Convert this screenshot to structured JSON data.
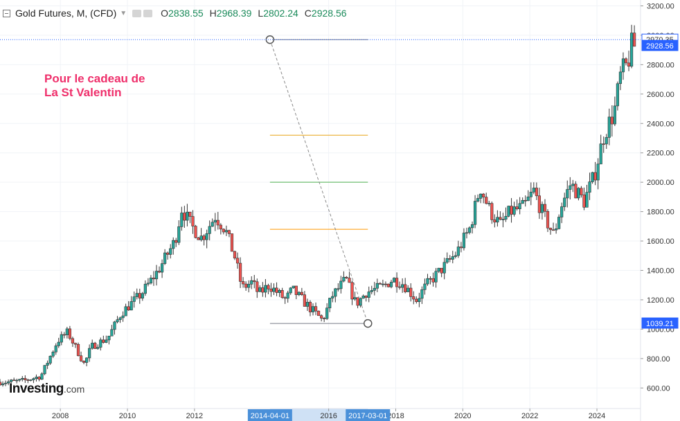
{
  "header": {
    "title": "Gold Futures, M, (CFD)",
    "open_label": "O",
    "open": "2838.55",
    "high_label": "H",
    "high": "2968.39",
    "low_label": "L",
    "low": "2802.24",
    "close_label": "C",
    "close": "2928.56"
  },
  "annotation": {
    "line1": "Pour le cadeau de",
    "line2": "La St Valentin"
  },
  "logo": {
    "main": "Investing",
    "suffix": ".com"
  },
  "colors": {
    "up": "#26a69a",
    "down": "#ef5350",
    "grid_line": "#f0f3f7",
    "price_tag": "#2962ff",
    "date_tag": "#4a90d9"
  },
  "chart_data": {
    "type": "candlestick",
    "y_axis": {
      "ticks": [
        "600.00",
        "800.00",
        "1000.00",
        "1200.00",
        "1400.00",
        "1600.00",
        "1800.00",
        "2000.00",
        "2200.00",
        "2400.00",
        "2600.00",
        "2800.00",
        "3000.00",
        "3200.00"
      ],
      "tick_values": [
        600,
        800,
        1000,
        1200,
        1400,
        1600,
        1800,
        2000,
        2200,
        2400,
        2600,
        2800,
        3000,
        3200
      ],
      "range": [
        460,
        3240
      ]
    },
    "x_axis": {
      "ticks": [
        "2008",
        "2010",
        "2012",
        "2016",
        "2018",
        "2020",
        "2022",
        "2024"
      ],
      "tick_years": [
        2008,
        2010,
        2012,
        2016,
        2018,
        2020,
        2022,
        2024
      ],
      "range": [
        2006.2,
        2025.3
      ]
    },
    "price_labels": [
      {
        "text": "2970.35",
        "value": 2970.35,
        "style": "outline"
      },
      {
        "text": "2928.56",
        "value": 2928.56,
        "style": "filled"
      },
      {
        "text": "1039.21",
        "value": 1039.21,
        "style": "filled"
      }
    ],
    "date_labels": [
      {
        "text": "2014-04-01",
        "year": 2014.25
      },
      {
        "text": "2017-03-01",
        "year": 2017.17
      }
    ],
    "date_range_highlight": [
      2014.25,
      2017.17
    ],
    "current_price_line": 2970.35,
    "fib_retracement": {
      "start": {
        "year": 2014.25,
        "price": 2970.35
      },
      "end": {
        "year": 2017.17,
        "price": 1039.21
      },
      "levels": [
        {
          "price": 2970.35,
          "color": "#787b86"
        },
        {
          "price": 2320,
          "color": "#e8a317"
        },
        {
          "price": 2000,
          "color": "#4caf50"
        },
        {
          "price": 1680,
          "color": "#ff9800"
        },
        {
          "price": 1039.21,
          "color": "#787b86"
        }
      ]
    },
    "series": [
      {
        "year": 2006.5,
        "close": 640
      },
      {
        "year": 2007.0,
        "close": 650
      },
      {
        "year": 2007.5,
        "close": 680
      },
      {
        "year": 2008.0,
        "close": 920
      },
      {
        "year": 2008.3,
        "close": 980
      },
      {
        "year": 2008.8,
        "close": 760
      },
      {
        "year": 2009.0,
        "close": 880
      },
      {
        "year": 2009.5,
        "close": 940
      },
      {
        "year": 2009.9,
        "close": 1110
      },
      {
        "year": 2010.5,
        "close": 1240
      },
      {
        "year": 2011.0,
        "close": 1400
      },
      {
        "year": 2011.5,
        "close": 1600
      },
      {
        "year": 2011.7,
        "close": 1820
      },
      {
        "year": 2012.0,
        "close": 1700
      },
      {
        "year": 2012.3,
        "close": 1620
      },
      {
        "year": 2012.7,
        "close": 1770
      },
      {
        "year": 2013.0,
        "close": 1680
      },
      {
        "year": 2013.3,
        "close": 1480
      },
      {
        "year": 2013.5,
        "close": 1280
      },
      {
        "year": 2013.8,
        "close": 1320
      },
      {
        "year": 2014.0,
        "close": 1240
      },
      {
        "year": 2014.3,
        "close": 1300
      },
      {
        "year": 2014.8,
        "close": 1200
      },
      {
        "year": 2015.0,
        "close": 1270
      },
      {
        "year": 2015.5,
        "close": 1150
      },
      {
        "year": 2015.9,
        "close": 1060
      },
      {
        "year": 2016.2,
        "close": 1230
      },
      {
        "year": 2016.6,
        "close": 1340
      },
      {
        "year": 2016.9,
        "close": 1170
      },
      {
        "year": 2017.2,
        "close": 1250
      },
      {
        "year": 2017.7,
        "close": 1290
      },
      {
        "year": 2018.0,
        "close": 1340
      },
      {
        "year": 2018.3,
        "close": 1310
      },
      {
        "year": 2018.7,
        "close": 1200
      },
      {
        "year": 2019.0,
        "close": 1300
      },
      {
        "year": 2019.5,
        "close": 1420
      },
      {
        "year": 2019.9,
        "close": 1520
      },
      {
        "year": 2020.3,
        "close": 1690
      },
      {
        "year": 2020.6,
        "close": 1970
      },
      {
        "year": 2020.9,
        "close": 1800
      },
      {
        "year": 2021.2,
        "close": 1710
      },
      {
        "year": 2021.5,
        "close": 1800
      },
      {
        "year": 2021.9,
        "close": 1830
      },
      {
        "year": 2022.2,
        "close": 1940
      },
      {
        "year": 2022.5,
        "close": 1770
      },
      {
        "year": 2022.8,
        "close": 1640
      },
      {
        "year": 2023.0,
        "close": 1830
      },
      {
        "year": 2023.3,
        "close": 1990
      },
      {
        "year": 2023.7,
        "close": 1870
      },
      {
        "year": 2024.0,
        "close": 2040
      },
      {
        "year": 2024.3,
        "close": 2330
      },
      {
        "year": 2024.6,
        "close": 2480
      },
      {
        "year": 2024.8,
        "close": 2740
      },
      {
        "year": 2025.0,
        "close": 2800
      },
      {
        "year": 2025.1,
        "close": 2928.56
      }
    ]
  }
}
